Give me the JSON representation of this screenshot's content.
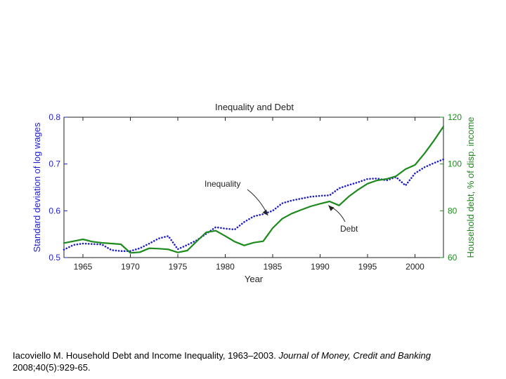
{
  "chart_data": {
    "type": "line",
    "title": "Inequality and Debt",
    "xlabel": "Year",
    "ylabel_left": "Standard deviation of log wages",
    "ylabel_right": "Household debt, % of disp. income",
    "xlim": [
      1963,
      2003
    ],
    "ylim_left": [
      0.5,
      0.8
    ],
    "ylim_right": [
      60,
      120
    ],
    "xticks": [
      1965,
      1970,
      1975,
      1980,
      1985,
      1990,
      1995,
      2000
    ],
    "yticks_left": [
      0.5,
      0.6,
      0.7,
      0.8
    ],
    "yticks_right": [
      60,
      80,
      100,
      120
    ],
    "ytick_labels_left": [
      "0.5",
      "0.6",
      "0.7",
      "0.8"
    ],
    "ytick_labels_right": [
      "60",
      "80",
      "100",
      "120"
    ],
    "series": [
      {
        "name": "Inequality",
        "axis": "left",
        "color": "#1f1fc8",
        "style": "dotted",
        "x": [
          1963,
          1964,
          1965,
          1966,
          1967,
          1968,
          1969,
          1970,
          1971,
          1972,
          1973,
          1974,
          1975,
          1976,
          1977,
          1978,
          1979,
          1980,
          1981,
          1982,
          1983,
          1984,
          1985,
          1986,
          1987,
          1988,
          1989,
          1990,
          1991,
          1992,
          1993,
          1994,
          1995,
          1996,
          1997,
          1998,
          1999,
          2000,
          2001,
          2002,
          2003
        ],
        "values": [
          0.517,
          0.527,
          0.53,
          0.529,
          0.528,
          0.516,
          0.514,
          0.514,
          0.52,
          0.53,
          0.541,
          0.546,
          0.518,
          0.527,
          0.537,
          0.551,
          0.565,
          0.562,
          0.56,
          0.576,
          0.588,
          0.593,
          0.6,
          0.616,
          0.622,
          0.626,
          0.63,
          0.632,
          0.633,
          0.648,
          0.655,
          0.661,
          0.668,
          0.669,
          0.665,
          0.672,
          0.654,
          0.68,
          0.693,
          0.702,
          0.71
        ]
      },
      {
        "name": "Debt",
        "axis": "right",
        "color": "#1e8a1e",
        "style": "solid",
        "x": [
          1963,
          1964,
          1965,
          1966,
          1967,
          1968,
          1969,
          1970,
          1971,
          1972,
          1973,
          1974,
          1975,
          1976,
          1977,
          1978,
          1979,
          1980,
          1981,
          1982,
          1983,
          1984,
          1985,
          1986,
          1987,
          1988,
          1989,
          1990,
          1991,
          1992,
          1993,
          1994,
          1995,
          1996,
          1997,
          1998,
          1999,
          2000,
          2001,
          2002,
          2003
        ],
        "values": [
          66.2,
          67.0,
          67.8,
          66.8,
          66.3,
          66.0,
          65.7,
          62.0,
          62.3,
          64.0,
          63.8,
          63.5,
          62.2,
          63.0,
          67.0,
          70.8,
          71.5,
          69.2,
          66.8,
          65.2,
          66.4,
          67.0,
          72.6,
          76.6,
          78.8,
          80.4,
          81.9,
          83.0,
          84.0,
          82.3,
          86.0,
          89.0,
          91.6,
          93.0,
          93.6,
          94.8,
          97.8,
          99.6,
          104.5,
          110.0,
          116.0
        ]
      }
    ],
    "annotations": [
      {
        "text": "Inequality",
        "arrow_to": [
          1984.5,
          0.596
        ]
      },
      {
        "text": "Debt",
        "arrow_to": [
          1990.8,
          83.5
        ]
      }
    ],
    "grid": false
  },
  "caption": {
    "prefix": "Iacoviello M. Household Debt and Income Inequality, 1963–2003. ",
    "journal": "Journal of Money, Credit and Banking",
    "suffix": " 2008;40(5):929-65."
  }
}
